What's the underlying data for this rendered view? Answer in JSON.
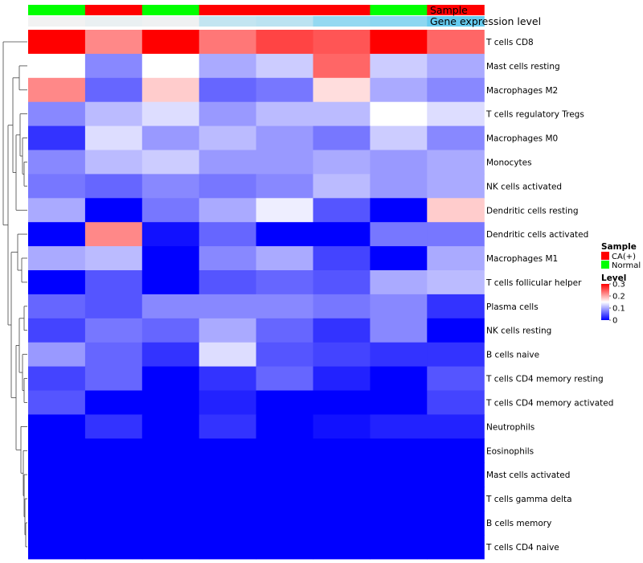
{
  "chart_data": {
    "type": "heatmap",
    "color_scale": {
      "low": "#0000FF",
      "mid": "#FFFFFF",
      "high": "#FF0000",
      "min": 0,
      "max": 0.3,
      "mid_value": 0.15
    },
    "annotation_rows": {
      "sample": {
        "label": "Sample",
        "values": [
          "Normal",
          "CA(+)",
          "Normal",
          "CA(+)",
          "CA(+)",
          "CA(+)",
          "Normal",
          "CA(+)"
        ]
      },
      "gene_expression": {
        "label": "Gene expression level",
        "values": [
          0.0,
          0.05,
          0.02,
          0.3,
          0.35,
          0.6,
          0.65,
          0.9
        ]
      }
    },
    "row_labels": [
      "T cells CD8",
      "Mast cells resting",
      "Macrophages M2",
      "T cells regulatory  Tregs",
      "Macrophages M0",
      "Monocytes",
      "NK cells activated",
      "Dendritic cells resting",
      "Dendritic cells activated",
      "Macrophages M1",
      "T cells follicular helper",
      "Plasma cells",
      "NK cells resting",
      "B cells naive",
      "T cells CD4 memory resting",
      "T cells CD4 memory activated",
      "Neutrophils",
      "Eosinophils",
      "Mast cells activated",
      "T cells gamma delta",
      "B cells memory",
      "T cells CD4 naive"
    ],
    "values": [
      [
        0.3,
        0.22,
        0.3,
        0.23,
        0.26,
        0.25,
        0.3,
        0.24
      ],
      [
        0.15,
        0.08,
        0.15,
        0.1,
        0.12,
        0.24,
        0.12,
        0.1
      ],
      [
        0.22,
        0.06,
        0.18,
        0.06,
        0.07,
        0.17,
        0.1,
        0.08
      ],
      [
        0.08,
        0.11,
        0.13,
        0.09,
        0.11,
        0.11,
        0.15,
        0.13
      ],
      [
        0.03,
        0.13,
        0.09,
        0.11,
        0.09,
        0.07,
        0.12,
        0.08
      ],
      [
        0.08,
        0.11,
        0.12,
        0.09,
        0.09,
        0.1,
        0.09,
        0.1
      ],
      [
        0.07,
        0.06,
        0.08,
        0.07,
        0.08,
        0.11,
        0.09,
        0.1
      ],
      [
        0.1,
        0.0,
        0.07,
        0.1,
        0.14,
        0.05,
        0.0,
        0.18
      ],
      [
        0.0,
        0.22,
        0.01,
        0.06,
        0.0,
        0.0,
        0.07,
        0.07
      ],
      [
        0.1,
        0.11,
        0.0,
        0.08,
        0.1,
        0.04,
        0.0,
        0.1
      ],
      [
        0.0,
        0.05,
        0.0,
        0.05,
        0.06,
        0.05,
        0.1,
        0.11
      ],
      [
        0.06,
        0.05,
        0.08,
        0.08,
        0.08,
        0.07,
        0.08,
        0.03
      ],
      [
        0.04,
        0.07,
        0.06,
        0.1,
        0.06,
        0.03,
        0.08,
        0.0
      ],
      [
        0.09,
        0.06,
        0.03,
        0.13,
        0.05,
        0.04,
        0.03,
        0.03
      ],
      [
        0.04,
        0.06,
        0.0,
        0.03,
        0.06,
        0.02,
        0.0,
        0.05
      ],
      [
        0.05,
        0.0,
        0.0,
        0.02,
        0.0,
        0.0,
        0.0,
        0.04
      ],
      [
        0.0,
        0.03,
        0.0,
        0.03,
        0.0,
        0.01,
        0.02,
        0.02
      ],
      [
        0.0,
        0.0,
        0.0,
        0.0,
        0.0,
        0.0,
        0.0,
        0.0
      ],
      [
        0.0,
        0.0,
        0.0,
        0.0,
        0.0,
        0.0,
        0.0,
        0.0
      ],
      [
        0.0,
        0.0,
        0.0,
        0.0,
        0.0,
        0.0,
        0.0,
        0.0
      ],
      [
        0.0,
        0.0,
        0.0,
        0.0,
        0.0,
        0.0,
        0.0,
        0.0
      ],
      [
        0.0,
        0.0,
        0.0,
        0.0,
        0.0,
        0.0,
        0.0,
        0.0
      ]
    ],
    "legends": {
      "sample": {
        "title": "Sample",
        "entries": [
          {
            "label": "CA(+)",
            "color": "#FF0000"
          },
          {
            "label": "Normal",
            "color": "#00FF00"
          }
        ]
      },
      "level": {
        "title": "Level",
        "ticks": [
          {
            "value": 0.3,
            "label": "0.3"
          },
          {
            "value": 0.2,
            "label": "0.2"
          },
          {
            "value": 0.1,
            "label": "0.1"
          },
          {
            "value": 0.0,
            "label": "0"
          }
        ]
      }
    },
    "colors": {
      "sample_colors": {
        "CA(+)": "#FF0000",
        "Normal": "#00FF00"
      },
      "gene_expression_low": "#F2F2F2",
      "gene_expression_high": "#56C8F0"
    }
  }
}
